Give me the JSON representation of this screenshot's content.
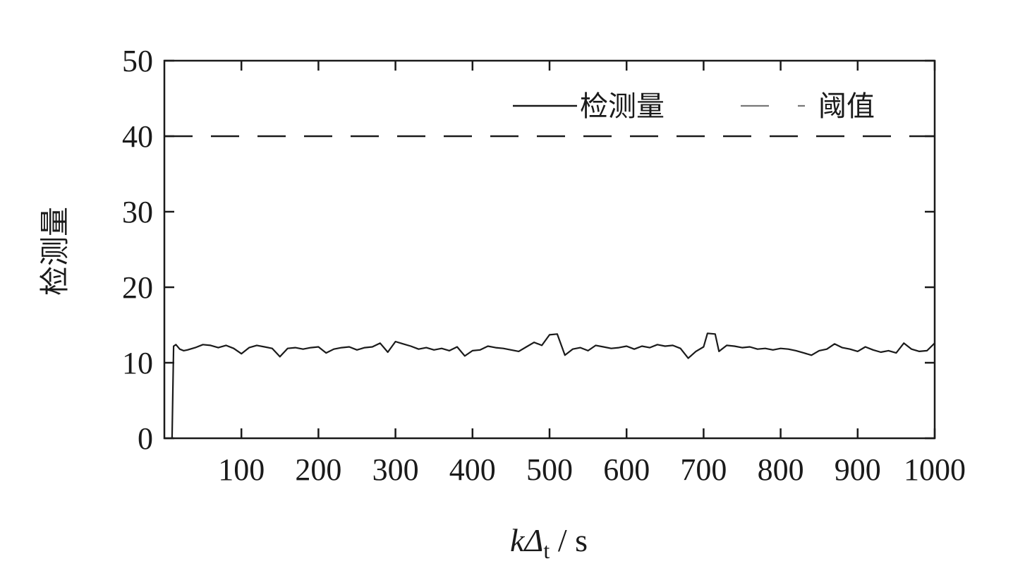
{
  "chart_data": {
    "type": "line",
    "title": "",
    "xlabel": {
      "main": "kΔ",
      "sub": "t",
      "unit": " / s"
    },
    "ylabel": "检测量",
    "xlim": [
      0,
      1000
    ],
    "ylim": [
      0,
      50
    ],
    "xticks": [
      100,
      200,
      300,
      400,
      500,
      600,
      700,
      800,
      900,
      1000
    ],
    "yticks": [
      0,
      10,
      20,
      30,
      40,
      50
    ],
    "grid": false,
    "legend_position": "top-right",
    "series": [
      {
        "name": "检测量",
        "style": "solid",
        "color": "#1a1a1a",
        "points": [
          [
            10,
            0
          ],
          [
            12,
            12.2
          ],
          [
            15,
            12.4
          ],
          [
            20,
            11.8
          ],
          [
            25,
            11.6
          ],
          [
            30,
            11.7
          ],
          [
            40,
            12.0
          ],
          [
            50,
            12.4
          ],
          [
            60,
            12.3
          ],
          [
            70,
            12.0
          ],
          [
            80,
            12.3
          ],
          [
            90,
            11.9
          ],
          [
            100,
            11.2
          ],
          [
            110,
            12.0
          ],
          [
            120,
            12.3
          ],
          [
            130,
            12.1
          ],
          [
            140,
            11.9
          ],
          [
            150,
            10.8
          ],
          [
            160,
            11.9
          ],
          [
            170,
            12.0
          ],
          [
            180,
            11.8
          ],
          [
            190,
            12.0
          ],
          [
            200,
            12.1
          ],
          [
            210,
            11.3
          ],
          [
            220,
            11.8
          ],
          [
            230,
            12.0
          ],
          [
            240,
            12.1
          ],
          [
            250,
            11.7
          ],
          [
            260,
            12.0
          ],
          [
            270,
            12.1
          ],
          [
            280,
            12.6
          ],
          [
            290,
            11.4
          ],
          [
            300,
            12.8
          ],
          [
            310,
            12.5
          ],
          [
            320,
            12.2
          ],
          [
            330,
            11.8
          ],
          [
            340,
            12.0
          ],
          [
            350,
            11.7
          ],
          [
            360,
            11.9
          ],
          [
            370,
            11.6
          ],
          [
            380,
            12.1
          ],
          [
            390,
            10.9
          ],
          [
            400,
            11.6
          ],
          [
            410,
            11.7
          ],
          [
            420,
            12.2
          ],
          [
            430,
            12.0
          ],
          [
            440,
            11.9
          ],
          [
            450,
            11.7
          ],
          [
            460,
            11.5
          ],
          [
            470,
            12.1
          ],
          [
            480,
            12.7
          ],
          [
            490,
            12.3
          ],
          [
            500,
            13.7
          ],
          [
            510,
            13.8
          ],
          [
            520,
            11.0
          ],
          [
            530,
            11.8
          ],
          [
            540,
            12.0
          ],
          [
            550,
            11.6
          ],
          [
            560,
            12.3
          ],
          [
            570,
            12.1
          ],
          [
            580,
            11.9
          ],
          [
            590,
            12.0
          ],
          [
            600,
            12.2
          ],
          [
            610,
            11.8
          ],
          [
            620,
            12.2
          ],
          [
            630,
            12.0
          ],
          [
            640,
            12.4
          ],
          [
            650,
            12.2
          ],
          [
            660,
            12.3
          ],
          [
            670,
            11.9
          ],
          [
            680,
            10.6
          ],
          [
            690,
            11.5
          ],
          [
            700,
            12.1
          ],
          [
            705,
            13.9
          ],
          [
            715,
            13.8
          ],
          [
            720,
            11.5
          ],
          [
            730,
            12.3
          ],
          [
            740,
            12.2
          ],
          [
            750,
            12.0
          ],
          [
            760,
            12.1
          ],
          [
            770,
            11.8
          ],
          [
            780,
            11.9
          ],
          [
            790,
            11.7
          ],
          [
            800,
            11.9
          ],
          [
            810,
            11.8
          ],
          [
            820,
            11.6
          ],
          [
            830,
            11.3
          ],
          [
            840,
            11.0
          ],
          [
            850,
            11.6
          ],
          [
            860,
            11.8
          ],
          [
            870,
            12.5
          ],
          [
            880,
            12.0
          ],
          [
            890,
            11.8
          ],
          [
            900,
            11.5
          ],
          [
            910,
            12.1
          ],
          [
            920,
            11.7
          ],
          [
            930,
            11.4
          ],
          [
            940,
            11.6
          ],
          [
            950,
            11.3
          ],
          [
            960,
            12.6
          ],
          [
            970,
            11.8
          ],
          [
            980,
            11.5
          ],
          [
            990,
            11.6
          ],
          [
            1000,
            12.6
          ]
        ]
      },
      {
        "name": "阈值",
        "style": "dashed",
        "color": "#1a1a1a",
        "points": [
          [
            0,
            40
          ],
          [
            1000,
            40
          ]
        ]
      }
    ]
  }
}
